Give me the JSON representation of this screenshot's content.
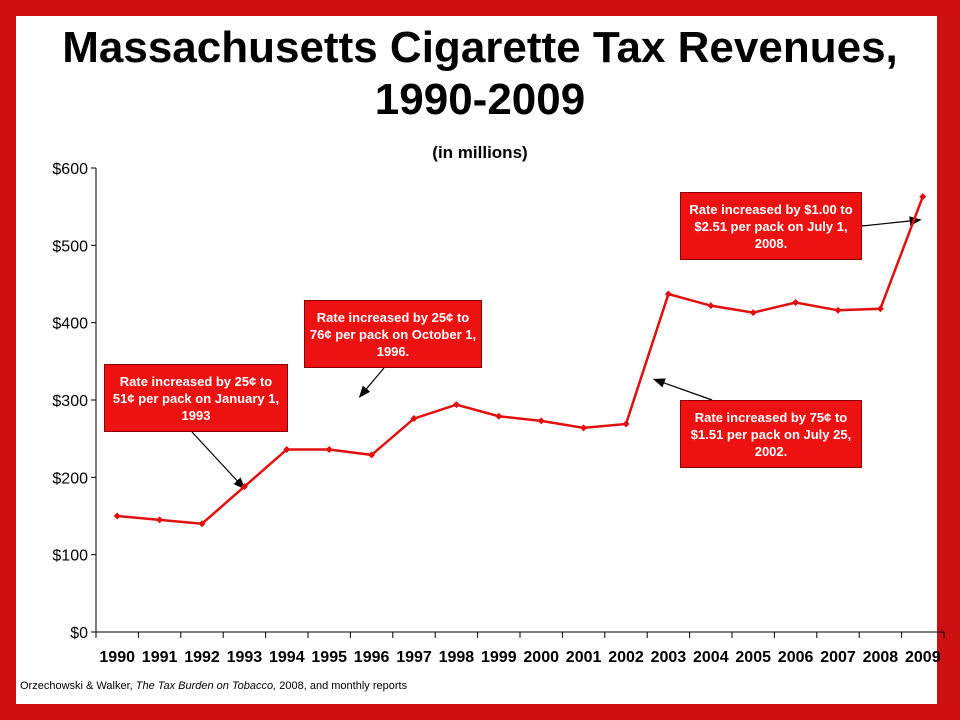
{
  "colors": {
    "border": "#cc1010",
    "line": "#e01010",
    "callout_bg": "#ee1111",
    "callout_text": "#ffffff"
  },
  "chart_data": {
    "type": "line",
    "title": "Massachusetts Cigarette Tax Revenues, 1990-2009",
    "subtitle": "(in millions)",
    "categories": [
      "1990",
      "1991",
      "1992",
      "1993",
      "1994",
      "1995",
      "1996",
      "1997",
      "1998",
      "1999",
      "2000",
      "2001",
      "2002",
      "2003",
      "2004",
      "2005",
      "2006",
      "2007",
      "2008",
      "2009"
    ],
    "y_ticks": [
      "$0",
      "$100",
      "$200",
      "$300",
      "$400",
      "$500",
      "$600"
    ],
    "ylim": [
      0,
      600
    ],
    "grid": false,
    "series": [
      {
        "values": [
          150,
          145,
          140,
          188,
          236,
          236,
          229,
          276,
          294,
          279,
          273,
          264,
          269,
          437,
          422,
          413,
          426,
          416,
          418,
          563
        ]
      }
    ],
    "annotations": [
      {
        "text": "Rate increased by 25¢ to 51¢ per pack on January 1, 1993",
        "points_to": "1993"
      },
      {
        "text": "Rate increased by 25¢ to 76¢ per pack on October 1, 1996.",
        "points_to": "1996"
      },
      {
        "text": "Rate increased by 75¢ to $1.51 per pack on July 25, 2002.",
        "points_to": "2002"
      },
      {
        "text": "Rate increased by $1.00 to $2.51 per pack on July 1, 2008.",
        "points_to": "2008"
      }
    ]
  },
  "source": {
    "authors": "Orzechowski  & Walker,",
    "work": "The Tax Burden on Tobacco,",
    "rest": "2008,  and monthly reports"
  }
}
